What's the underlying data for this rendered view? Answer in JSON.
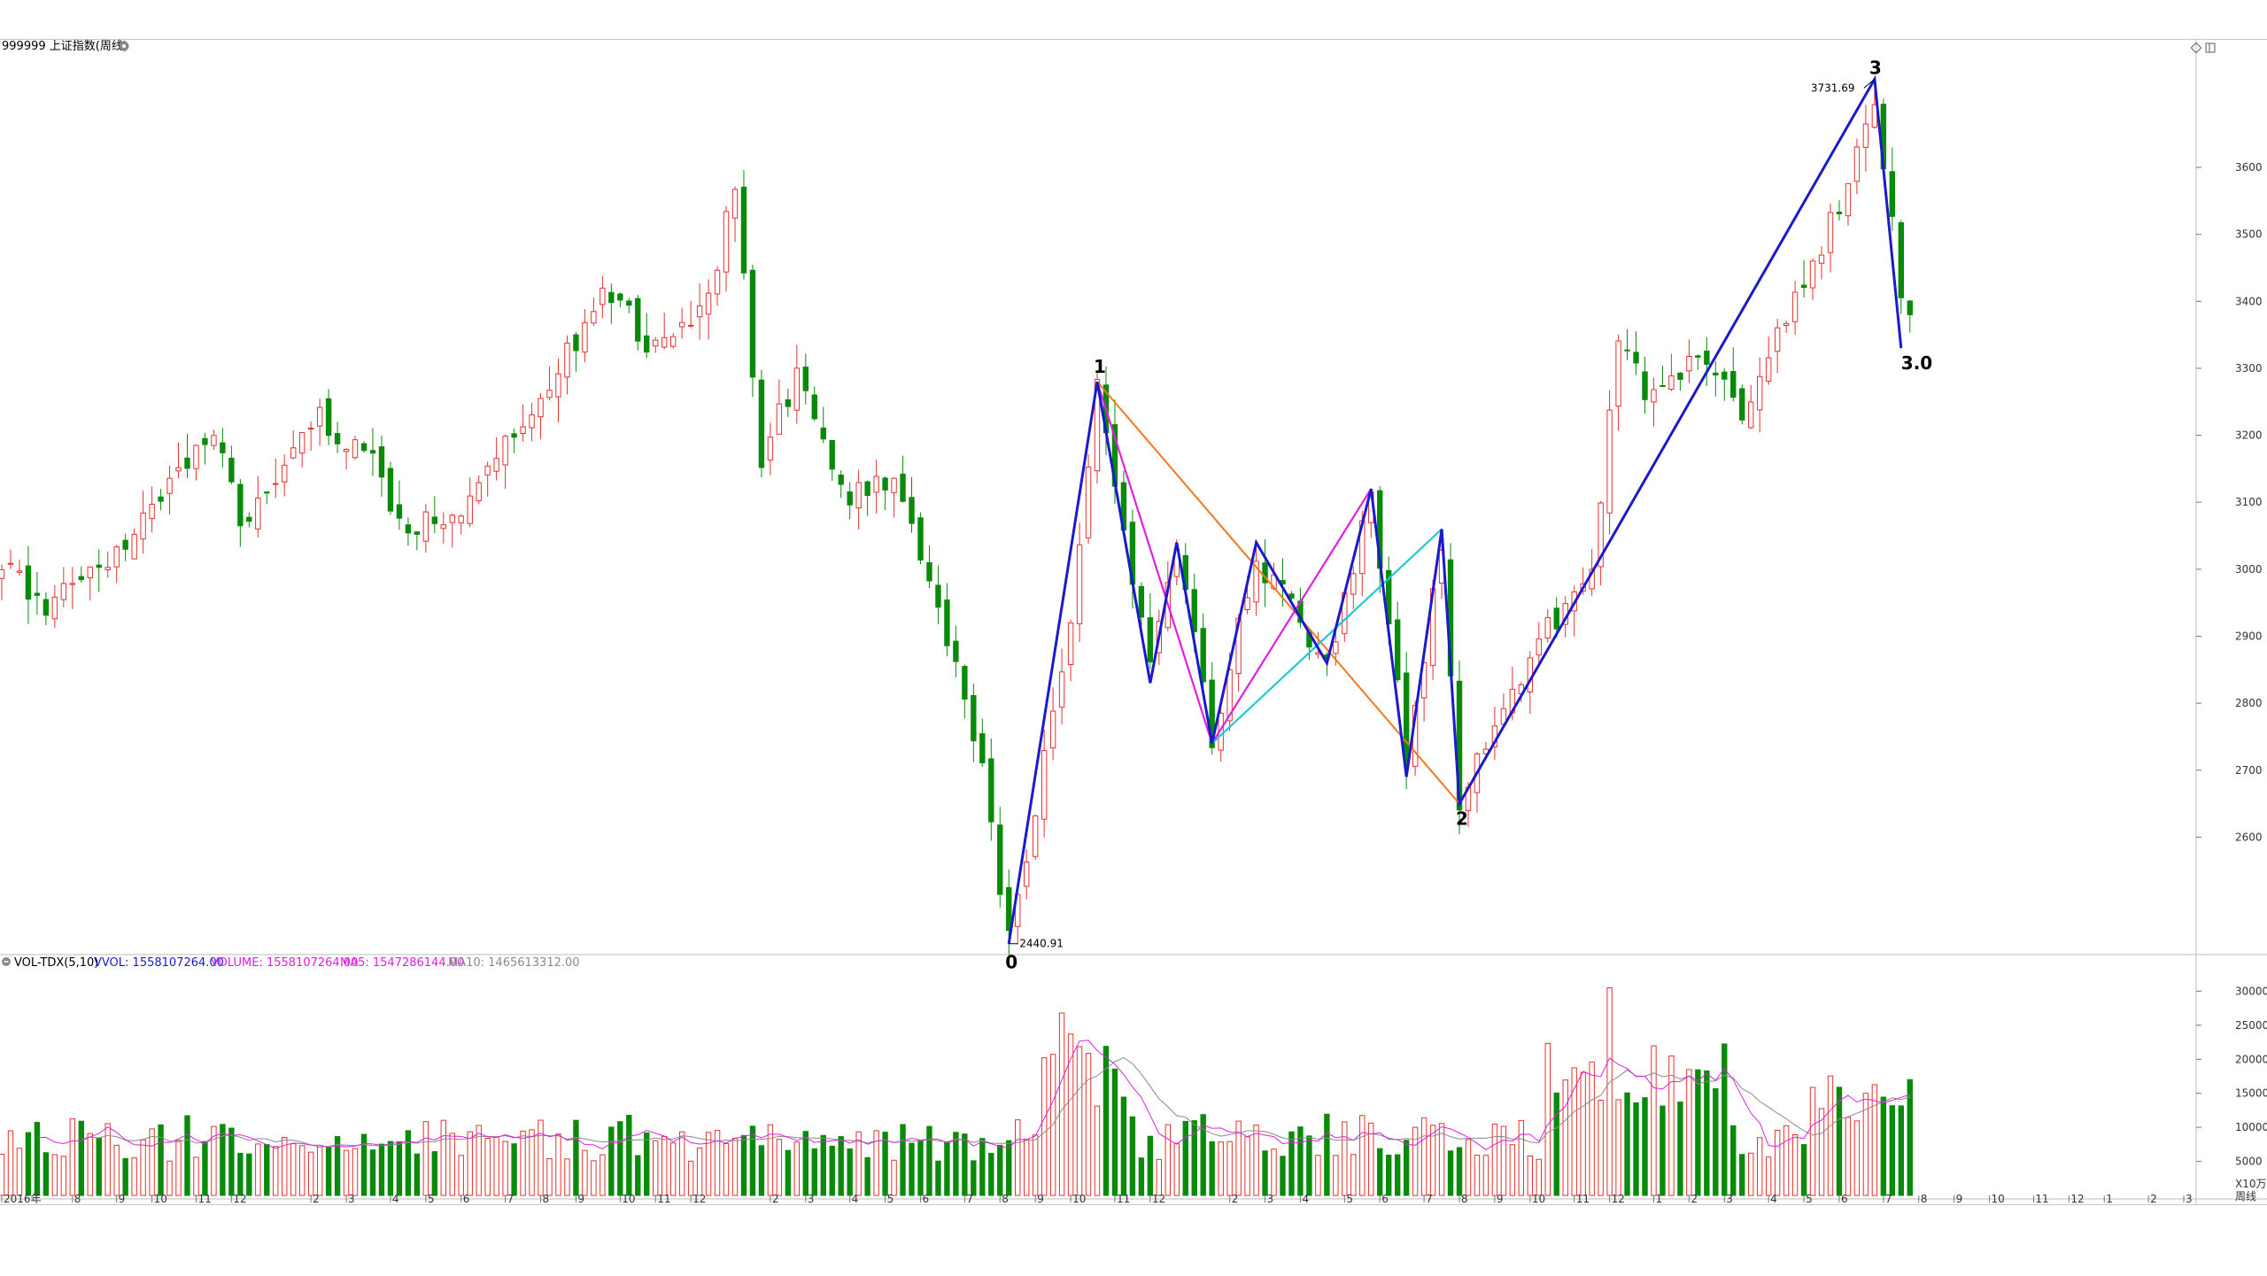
{
  "main_panel": {
    "title": "999999 上证指数(周线)",
    "gear_icon": "gear-icon",
    "corner_icons": [
      "diamond-icon",
      "window-icon"
    ]
  },
  "vol_panel": {
    "indicator": "VOL-TDX(5,10)",
    "vvol_label": "VVOL: 1558107264.00",
    "volume_label": "VOLUME: 1558107264.00",
    "ma5_label": "MA5: 1547286144.00",
    "ma10_label": "MA10: 1465613312.00",
    "unit_label": "X10万",
    "period_label": "周线"
  },
  "colors": {
    "up": "#e8302e",
    "down": "#0a8a0a",
    "wave": "#1a1acc",
    "orange": "#f07820",
    "magenta": "#e020e0",
    "cyan": "#20c8d8",
    "ma5": "#e020e0",
    "ma10": "#8a8a8a"
  },
  "chart_data": [
    {
      "type": "candlestick",
      "title": "999999 上证指数(周线)",
      "ylim": [
        2430,
        3760
      ],
      "y_ticks": [
        2600,
        2700,
        2800,
        2900,
        3000,
        3100,
        3200,
        3300,
        3400,
        3500,
        3600
      ],
      "annotations": {
        "low_value": "2440.91",
        "high_value": "3731.69",
        "wave_labels": [
          "0",
          "1",
          "2",
          "3",
          "3.0"
        ]
      },
      "wave_path": [
        [
          114,
          2440.91
        ],
        [
          124,
          3280
        ],
        [
          130,
          2830
        ],
        [
          133,
          3040
        ],
        [
          137,
          2740
        ],
        [
          142,
          3040
        ],
        [
          150,
          2860
        ],
        [
          155,
          3120
        ],
        [
          159,
          2690
        ],
        [
          163,
          3060
        ],
        [
          165,
          2650
        ],
        [
          212,
          3731.69
        ],
        [
          215,
          3330
        ]
      ],
      "orange_line": [
        [
          124,
          3280
        ],
        [
          165,
          2650
        ]
      ],
      "magenta_lines": [
        [
          [
            124,
            3280
          ],
          [
            137,
            2740
          ]
        ],
        [
          [
            137,
            2740
          ],
          [
            155,
            3120
          ]
        ]
      ],
      "cyan_line": [
        [
          137,
          2740
        ],
        [
          163,
          3060
        ]
      ]
    },
    {
      "type": "bar",
      "title": "VOL-TDX(5,10)",
      "ylim": [
        0,
        32000
      ],
      "y_ticks": [
        5000,
        10000,
        15000,
        20000,
        25000,
        30000
      ],
      "x_tick_labels": [
        "2016年",
        "8",
        "9",
        "10",
        "11",
        "12",
        "2",
        "3",
        "4",
        "5",
        "6",
        "7",
        "8",
        "9",
        "10",
        "11",
        "12",
        "2",
        "3",
        "4",
        "5",
        "6",
        "7",
        "8",
        "9",
        "10",
        "11",
        "12",
        "2",
        "3",
        "4",
        "5",
        "6",
        "7",
        "8",
        "9",
        "10",
        "11",
        "12",
        "1",
        "2",
        "3",
        "4",
        "5",
        "6",
        "7",
        "8",
        "9",
        "10",
        "11",
        "12",
        "1",
        "2",
        "3"
      ],
      "x_tick_bars": [
        0,
        8,
        13,
        17,
        22,
        26,
        35,
        39,
        44,
        48,
        52,
        57,
        61,
        65,
        70,
        74,
        78,
        87,
        91,
        96,
        100,
        104,
        109,
        113,
        117,
        121,
        126,
        130,
        139,
        143,
        147,
        152,
        156,
        161,
        165,
        169,
        173,
        178,
        182,
        187,
        191,
        195,
        200,
        204,
        208,
        213,
        217,
        221,
        225,
        230,
        234,
        238,
        243,
        247
      ]
    }
  ]
}
